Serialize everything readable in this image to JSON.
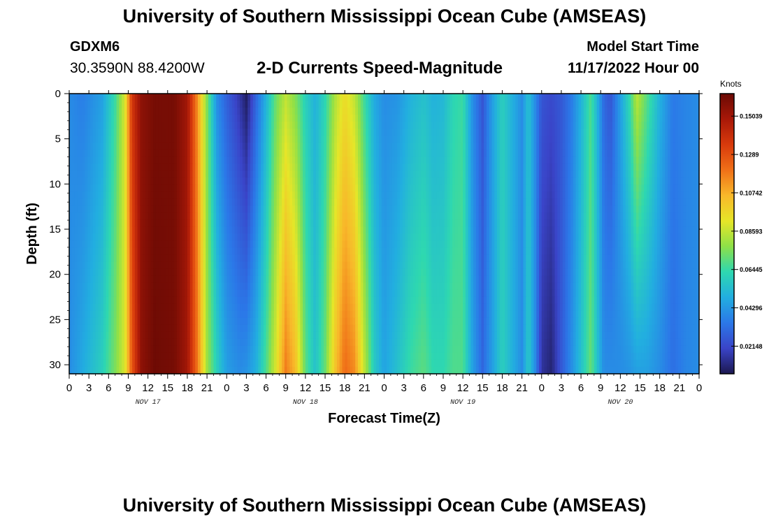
{
  "header": {
    "title": "University of Southern Mississippi Ocean Cube (AMSEAS)",
    "station": "GDXM6",
    "coords": "30.3590N  88.4200W",
    "subtitle": "2-D Currents Speed-Magnitude",
    "model_label": "Model Start Time",
    "model_time": "11/17/2022 Hour 00"
  },
  "footer": {
    "title": "University of Southern Mississippi Ocean Cube (AMSEAS)"
  },
  "chart_data": {
    "type": "heatmap",
    "title": "2-D Currents Speed-Magnitude",
    "xlabel": "Forecast Time(Z)",
    "ylabel": "Depth (ft)",
    "xlim": [
      0,
      96
    ],
    "ylim": [
      31,
      0
    ],
    "x_ticks": [
      0,
      3,
      6,
      9,
      12,
      15,
      18,
      21,
      24,
      27,
      30,
      33,
      36,
      39,
      42,
      45,
      48,
      51,
      54,
      57,
      60,
      63,
      66,
      69,
      72,
      75,
      78,
      81,
      84,
      87,
      90,
      93,
      96
    ],
    "x_tick_labels": [
      "0",
      "3",
      "6",
      "9",
      "12",
      "15",
      "18",
      "21",
      "0",
      "3",
      "6",
      "9",
      "12",
      "15",
      "18",
      "21",
      "0",
      "3",
      "6",
      "9",
      "12",
      "15",
      "18",
      "21",
      "0",
      "3",
      "6",
      "9",
      "12",
      "15",
      "18",
      "21",
      "0"
    ],
    "y_ticks": [
      0,
      5,
      10,
      15,
      20,
      25,
      30
    ],
    "y_tick_labels": [
      "0",
      "5",
      "10",
      "15",
      "20",
      "25",
      "30"
    ],
    "day_labels": [
      {
        "text": "NOV 17",
        "x": 12
      },
      {
        "text": "NOV 18",
        "x": 36
      },
      {
        "text": "NOV 19",
        "x": 60
      },
      {
        "text": "NOV 20",
        "x": 84
      }
    ],
    "colorbar": {
      "unit": "Knots",
      "min": 0.006,
      "max": 0.163,
      "ticks": [
        0.02148,
        0.04296,
        0.06445,
        0.08593,
        0.10742,
        0.1289,
        0.15039
      ],
      "tick_labels": [
        "0.02148",
        "0.04296",
        "0.06445",
        "0.08593",
        "0.10742",
        "0.1289",
        "0.15039"
      ],
      "colors": [
        "#1c1850",
        "#3a44c8",
        "#2b78e8",
        "#22aee0",
        "#2ed8b0",
        "#8ee048",
        "#e6e628",
        "#f8b82a",
        "#f07018",
        "#d83a0c",
        "#a81808",
        "#6a0a04"
      ]
    },
    "profiles": [
      {
        "x": 0,
        "top": 0.04,
        "bottom": 0.04
      },
      {
        "x": 2,
        "top": 0.036,
        "bottom": 0.048
      },
      {
        "x": 5,
        "top": 0.045,
        "bottom": 0.06
      },
      {
        "x": 7,
        "top": 0.065,
        "bottom": 0.075
      },
      {
        "x": 8.5,
        "top": 0.09,
        "bottom": 0.09
      },
      {
        "x": 9.5,
        "top": 0.135,
        "bottom": 0.125
      },
      {
        "x": 11,
        "top": 0.155,
        "bottom": 0.155
      },
      {
        "x": 13,
        "top": 0.16,
        "bottom": 0.162
      },
      {
        "x": 16,
        "top": 0.16,
        "bottom": 0.16
      },
      {
        "x": 18,
        "top": 0.15,
        "bottom": 0.15
      },
      {
        "x": 19.5,
        "top": 0.115,
        "bottom": 0.12
      },
      {
        "x": 21,
        "top": 0.075,
        "bottom": 0.08
      },
      {
        "x": 22.5,
        "top": 0.04,
        "bottom": 0.06
      },
      {
        "x": 24,
        "top": 0.028,
        "bottom": 0.045
      },
      {
        "x": 26,
        "top": 0.016,
        "bottom": 0.04
      },
      {
        "x": 27,
        "top": 0.008,
        "bottom": 0.042
      },
      {
        "x": 28.5,
        "top": 0.03,
        "bottom": 0.05
      },
      {
        "x": 30,
        "top": 0.05,
        "bottom": 0.068
      },
      {
        "x": 31.5,
        "top": 0.072,
        "bottom": 0.09
      },
      {
        "x": 33,
        "top": 0.085,
        "bottom": 0.118
      },
      {
        "x": 34.5,
        "top": 0.075,
        "bottom": 0.105
      },
      {
        "x": 36,
        "top": 0.06,
        "bottom": 0.07
      },
      {
        "x": 37.5,
        "top": 0.05,
        "bottom": 0.055
      },
      {
        "x": 39,
        "top": 0.062,
        "bottom": 0.072
      },
      {
        "x": 40.5,
        "top": 0.082,
        "bottom": 0.102
      },
      {
        "x": 42,
        "top": 0.095,
        "bottom": 0.122
      },
      {
        "x": 43.5,
        "top": 0.085,
        "bottom": 0.115
      },
      {
        "x": 45,
        "top": 0.065,
        "bottom": 0.085
      },
      {
        "x": 46.5,
        "top": 0.048,
        "bottom": 0.058
      },
      {
        "x": 48,
        "top": 0.04,
        "bottom": 0.046
      },
      {
        "x": 50,
        "top": 0.042,
        "bottom": 0.055
      },
      {
        "x": 52,
        "top": 0.05,
        "bottom": 0.065
      },
      {
        "x": 54,
        "top": 0.055,
        "bottom": 0.07
      },
      {
        "x": 55.5,
        "top": 0.05,
        "bottom": 0.063
      },
      {
        "x": 57,
        "top": 0.052,
        "bottom": 0.063
      },
      {
        "x": 58.5,
        "top": 0.062,
        "bottom": 0.068
      },
      {
        "x": 60,
        "top": 0.065,
        "bottom": 0.068
      },
      {
        "x": 61.5,
        "top": 0.04,
        "bottom": 0.045
      },
      {
        "x": 63,
        "top": 0.025,
        "bottom": 0.03
      },
      {
        "x": 64.5,
        "top": 0.045,
        "bottom": 0.045
      },
      {
        "x": 66,
        "top": 0.06,
        "bottom": 0.06
      },
      {
        "x": 67.5,
        "top": 0.05,
        "bottom": 0.05
      },
      {
        "x": 69,
        "top": 0.04,
        "bottom": 0.04
      },
      {
        "x": 70,
        "top": 0.055,
        "bottom": 0.058
      },
      {
        "x": 71,
        "top": 0.04,
        "bottom": 0.04
      },
      {
        "x": 72,
        "top": 0.025,
        "bottom": 0.015
      },
      {
        "x": 73.5,
        "top": 0.022,
        "bottom": 0.01
      },
      {
        "x": 75,
        "top": 0.026,
        "bottom": 0.026
      },
      {
        "x": 76.5,
        "top": 0.035,
        "bottom": 0.04
      },
      {
        "x": 78,
        "top": 0.05,
        "bottom": 0.055
      },
      {
        "x": 79.5,
        "top": 0.068,
        "bottom": 0.072
      },
      {
        "x": 80.5,
        "top": 0.05,
        "bottom": 0.055
      },
      {
        "x": 81.5,
        "top": 0.03,
        "bottom": 0.04
      },
      {
        "x": 82.5,
        "top": 0.025,
        "bottom": 0.04
      },
      {
        "x": 84,
        "top": 0.045,
        "bottom": 0.04
      },
      {
        "x": 85.5,
        "top": 0.065,
        "bottom": 0.042
      },
      {
        "x": 86.5,
        "top": 0.085,
        "bottom": 0.045
      },
      {
        "x": 88,
        "top": 0.07,
        "bottom": 0.045
      },
      {
        "x": 90,
        "top": 0.05,
        "bottom": 0.04
      },
      {
        "x": 92,
        "top": 0.035,
        "bottom": 0.032
      },
      {
        "x": 94,
        "top": 0.038,
        "bottom": 0.038
      },
      {
        "x": 96,
        "top": 0.04,
        "bottom": 0.04
      }
    ]
  }
}
